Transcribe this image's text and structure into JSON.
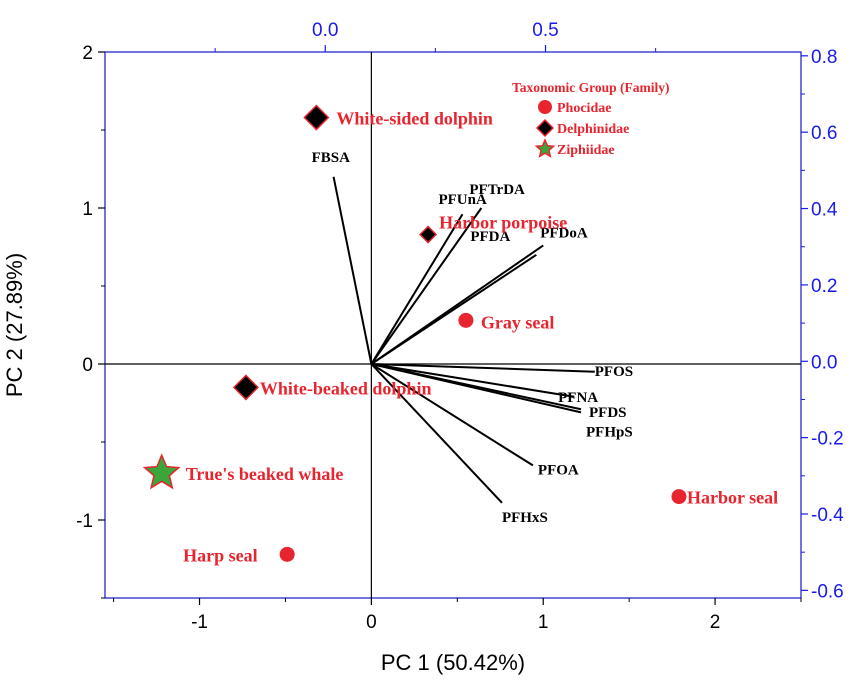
{
  "chart_data": {
    "type": "biplot",
    "xlabel": "PC 1 (50.42%)",
    "ylabel": "PC 2 (27.89%)",
    "xlim": [
      -1.55,
      2.5
    ],
    "ylim": [
      -1.5,
      2.0
    ],
    "top_xlim": [
      -0.5,
      1.08
    ],
    "right_ylim": [
      -0.62,
      0.81
    ],
    "ticks": {
      "bottom": {
        "values": [
          -1,
          0,
          1,
          2
        ],
        "labels": [
          "-1",
          "0",
          "1",
          "2"
        ]
      },
      "left": {
        "values": [
          -1,
          0,
          1,
          2
        ],
        "labels": [
          "-1",
          "0",
          "1",
          "2"
        ]
      },
      "top": {
        "values": [
          0.0,
          0.5
        ],
        "labels": [
          "0.0",
          "0.5"
        ]
      },
      "right": {
        "values": [
          -0.6,
          -0.4,
          -0.2,
          0.0,
          0.2,
          0.4,
          0.6,
          0.8
        ],
        "labels": [
          "-0.6",
          "-0.4",
          "-0.2",
          "0.0",
          "0.2",
          "0.4",
          "0.6",
          "0.8"
        ]
      }
    },
    "loadings": [
      {
        "name": "FBSA",
        "x": -0.22,
        "y": 1.2
      },
      {
        "name": "PFUnA",
        "x": 0.53,
        "y": 0.96
      },
      {
        "name": "PFTrDA",
        "x": 0.64,
        "y": 1.0
      },
      {
        "name": "PFDA",
        "x": 0.96,
        "y": 0.7
      },
      {
        "name": "PFDoA",
        "x": 1.0,
        "y": 0.76
      },
      {
        "name": "PFOS",
        "x": 1.3,
        "y": -0.05
      },
      {
        "name": "PFNA",
        "x": 1.18,
        "y": -0.21
      },
      {
        "name": "PFDS",
        "x": 1.22,
        "y": -0.29
      },
      {
        "name": "PFHpS",
        "x": 1.22,
        "y": -0.31
      },
      {
        "name": "PFOA",
        "x": 0.94,
        "y": -0.65
      },
      {
        "name": "PFHxS",
        "x": 0.76,
        "y": -0.89
      }
    ],
    "scores": [
      {
        "name": "White-sided dolphin",
        "family": "Delphinidae",
        "x": -0.32,
        "y": 1.58
      },
      {
        "name": "Harbor porpoise",
        "family": "Delphinidae",
        "x": 0.33,
        "y": 0.83
      },
      {
        "name": "Gray seal",
        "family": "Phocidae",
        "x": 0.55,
        "y": 0.28
      },
      {
        "name": "White-beaked dolphin",
        "family": "Delphinidae",
        "x": -0.73,
        "y": -0.15
      },
      {
        "name": "True's beaked whale",
        "family": "Ziphiidae",
        "x": -1.22,
        "y": -0.7
      },
      {
        "name": "Harbor seal",
        "family": "Phocidae",
        "x": 1.79,
        "y": -0.85
      },
      {
        "name": "Harp seal",
        "family": "Phocidae",
        "x": -0.49,
        "y": -1.22
      }
    ],
    "legend": {
      "title": "Taxonomic Group (Family)",
      "position": "top-right",
      "entries": [
        {
          "label": "Phocidae",
          "marker": "circle"
        },
        {
          "label": "Delphinidae",
          "marker": "diamond"
        },
        {
          "label": "Ziphiidae",
          "marker": "star"
        }
      ]
    },
    "colors": {
      "species_text": "#e8252e",
      "circle_fill": "#e8252e",
      "diamond_fill": "#000000",
      "diamond_stroke": "#e8252e",
      "star_fill": "#3aa63a",
      "star_stroke": "#e8252e",
      "secondary_axes": "#1a1aee"
    }
  }
}
